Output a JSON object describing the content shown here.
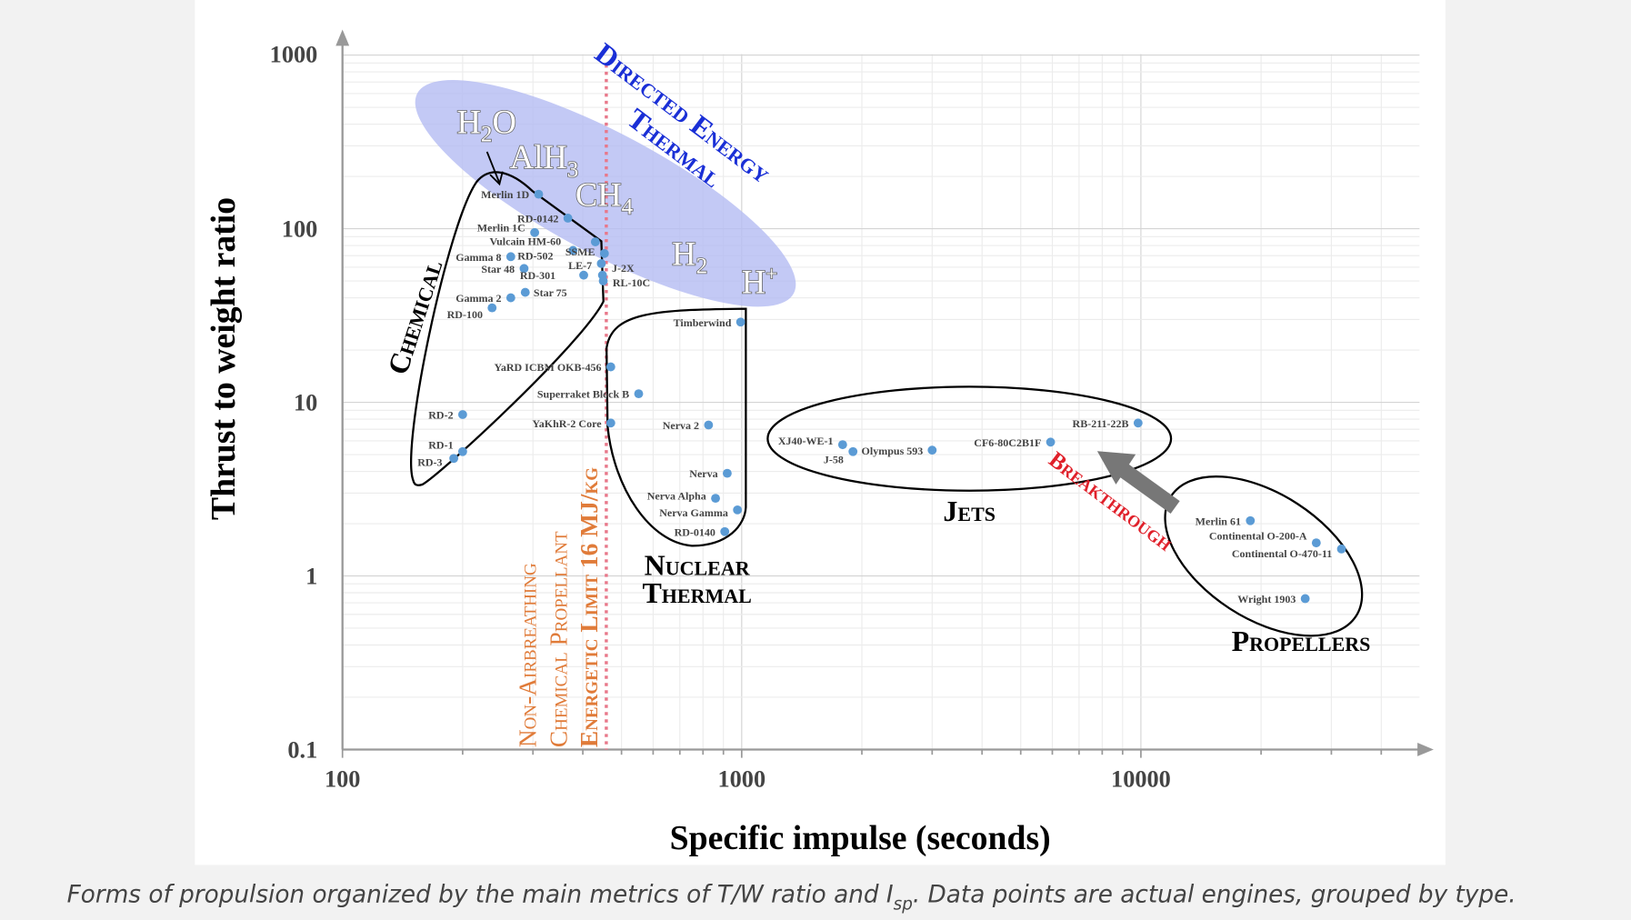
{
  "caption": {
    "text_before": "Forms of propulsion organized by the main metrics of T/W ratio and I",
    "subscript": "sp",
    "text_after": ".  Data points are actual engines, grouped by type."
  },
  "chart_data": {
    "type": "scatter",
    "xlabel": "Specific impulse (seconds)",
    "ylabel": "Thrust to weight ratio",
    "x_scale": "log",
    "y_scale": "log",
    "xlim": [
      100,
      45000
    ],
    "ylim": [
      0.1,
      1000
    ],
    "x_ticks": [
      "100",
      "1000",
      "10000"
    ],
    "y_ticks": [
      "1000",
      "100",
      "10",
      "1",
      "0.1"
    ],
    "grid": true,
    "point_color": "#5b9bd5",
    "points": [
      {
        "name": "Merlin 1D",
        "x": 310,
        "y": 158,
        "group": "chemical"
      },
      {
        "name": "RD-0142",
        "x": 367,
        "y": 115,
        "group": "chemical"
      },
      {
        "name": "Merlin 1C",
        "x": 303,
        "y": 95,
        "group": "chemical"
      },
      {
        "name": "Vulcain HM-60",
        "x": 430,
        "y": 84,
        "group": "chemical"
      },
      {
        "name": "RD-502",
        "x": 378,
        "y": 75,
        "group": "chemical"
      },
      {
        "name": "SSME",
        "x": 453,
        "y": 72,
        "group": "chemical"
      },
      {
        "name": "LE-7",
        "x": 445,
        "y": 63,
        "group": "chemical"
      },
      {
        "name": "Gamma 8",
        "x": 264,
        "y": 69,
        "group": "chemical"
      },
      {
        "name": "Star 48",
        "x": 285,
        "y": 59,
        "group": "chemical"
      },
      {
        "name": "RD-301",
        "x": 402,
        "y": 54,
        "group": "chemical"
      },
      {
        "name": "J-2X",
        "x": 448,
        "y": 54,
        "group": "chemical"
      },
      {
        "name": "RL-10C",
        "x": 450,
        "y": 50,
        "group": "chemical"
      },
      {
        "name": "Star 75",
        "x": 287,
        "y": 43,
        "group": "chemical"
      },
      {
        "name": "Gamma 2",
        "x": 264,
        "y": 40,
        "group": "chemical"
      },
      {
        "name": "RD-100",
        "x": 237,
        "y": 35,
        "group": "chemical"
      },
      {
        "name": "RD-2",
        "x": 200,
        "y": 8.5,
        "group": "chemical"
      },
      {
        "name": "RD-1",
        "x": 200,
        "y": 5.2,
        "group": "chemical"
      },
      {
        "name": "RD-3",
        "x": 190,
        "y": 4.75,
        "group": "chemical"
      },
      {
        "name": "YaRD ICBM OKB-456",
        "x": 470,
        "y": 16,
        "group": "nuclear"
      },
      {
        "name": "Superraket Block B",
        "x": 552,
        "y": 11.2,
        "group": "nuclear"
      },
      {
        "name": "YaKhR-2 Core",
        "x": 470,
        "y": 7.6,
        "group": "nuclear"
      },
      {
        "name": "Timberwind",
        "x": 994,
        "y": 29,
        "group": "nuclear"
      },
      {
        "name": "Nerva 2",
        "x": 826,
        "y": 7.4,
        "group": "nuclear"
      },
      {
        "name": "Nerva",
        "x": 920,
        "y": 3.9,
        "group": "nuclear"
      },
      {
        "name": "Nerva Alpha",
        "x": 860,
        "y": 2.8,
        "group": "nuclear"
      },
      {
        "name": "Nerva Gamma",
        "x": 976,
        "y": 2.4,
        "group": "nuclear"
      },
      {
        "name": "RD-0140",
        "x": 907,
        "y": 1.8,
        "group": "nuclear"
      },
      {
        "name": "XJ40-WE-1",
        "x": 1790,
        "y": 5.7,
        "group": "jets"
      },
      {
        "name": "J-58",
        "x": 1900,
        "y": 5.2,
        "group": "jets"
      },
      {
        "name": "Olympus 593",
        "x": 3000,
        "y": 5.3,
        "group": "jets"
      },
      {
        "name": "CF6-80C2B1F",
        "x": 5940,
        "y": 5.9,
        "group": "jets"
      },
      {
        "name": "RB-211-22B",
        "x": 9840,
        "y": 7.6,
        "group": "jets"
      },
      {
        "name": "Merlin 61",
        "x": 18800,
        "y": 2.08,
        "group": "propellers"
      },
      {
        "name": "Continental O-200-A",
        "x": 27500,
        "y": 1.55,
        "group": "propellers"
      },
      {
        "name": "Continental O-470-11",
        "x": 31800,
        "y": 1.43,
        "group": "propellers"
      },
      {
        "name": "Wright 1903",
        "x": 25800,
        "y": 0.74,
        "group": "propellers"
      }
    ],
    "annotations": {
      "chemical": "Chemical",
      "nuclear_line1": "Nuclear",
      "nuclear_line2": "Thermal",
      "jets": "Jets",
      "propellers": "Propellers",
      "directed_line1": "Directed Energy",
      "directed_line2": "Thermal",
      "breakthrough": "Breakthrough",
      "limit_line1": "Non-Airbreathing",
      "limit_line2": "Chemical Propellant",
      "limit_line3": "Energetic Limit 16 MJ/kg",
      "limit_isp": 458,
      "propellants": [
        {
          "base": "H",
          "sub": "2",
          "tail": "O"
        },
        {
          "base": "AlH",
          "sub": "3",
          "tail": ""
        },
        {
          "base": "CH",
          "sub": "4",
          "tail": ""
        },
        {
          "base": "H",
          "sub": "2",
          "tail": ""
        },
        {
          "base": "H",
          "sup": "+"
        }
      ]
    },
    "colors": {
      "directed_energy_region": "#b4bbf3",
      "directed_energy_text": "#1a2fd6",
      "limit_line": "#e8788a",
      "limit_text": "#e07b39",
      "breakthrough": "#e0202a",
      "breakthrough_arrow": "#777777"
    }
  }
}
